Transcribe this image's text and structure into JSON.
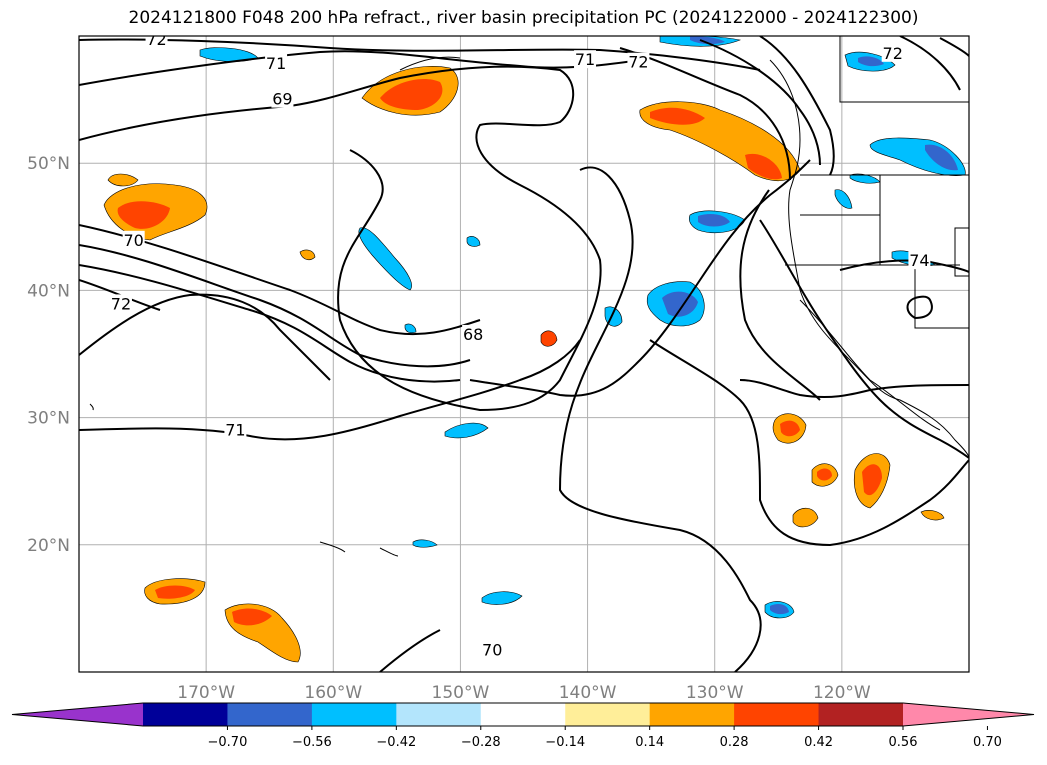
{
  "title": "2024121800 F048 200 hPa refract., river basin precipitation PC (2024122000 - 2024122300)",
  "map": {
    "lon_range": [
      -180,
      -110
    ],
    "lat_range": [
      10,
      60
    ],
    "lon_ticks": [
      {
        "value": -170,
        "label": "170°W"
      },
      {
        "value": -160,
        "label": "160°W"
      },
      {
        "value": -150,
        "label": "150°W"
      },
      {
        "value": -140,
        "label": "140°W"
      },
      {
        "value": -130,
        "label": "130°W"
      },
      {
        "value": -120,
        "label": "120°W"
      }
    ],
    "lat_ticks": [
      {
        "value": 50,
        "label": "50°N"
      },
      {
        "value": 40,
        "label": "40°N"
      },
      {
        "value": 30,
        "label": "30°N"
      },
      {
        "value": 20,
        "label": "20°N"
      }
    ],
    "grid": true,
    "contour_labels": [
      {
        "text": "72",
        "lon": -173.9,
        "lat": 59.7
      },
      {
        "text": "71",
        "lon": -164.5,
        "lat": 57.8
      },
      {
        "text": "69",
        "lon": -164.0,
        "lat": 55.0
      },
      {
        "text": "71",
        "lon": -140.2,
        "lat": 58.1
      },
      {
        "text": "72",
        "lon": -136.0,
        "lat": 57.9
      },
      {
        "text": "72",
        "lon": -116.0,
        "lat": 58.6
      },
      {
        "text": "70",
        "lon": -175.7,
        "lat": 43.9
      },
      {
        "text": "72",
        "lon": -176.7,
        "lat": 38.9
      },
      {
        "text": "68",
        "lon": -149.0,
        "lat": 36.5
      },
      {
        "text": "71",
        "lon": -167.7,
        "lat": 29.0
      },
      {
        "text": "70",
        "lon": -147.5,
        "lat": 11.7
      },
      {
        "text": "74",
        "lon": -113.9,
        "lat": 42.3
      }
    ]
  },
  "colorbar": {
    "colors": [
      "#9933cc",
      "#000099",
      "#3366cc",
      "#00bfff",
      "#b3e5fc",
      "#ffffff",
      "#ffee99",
      "#ffa500",
      "#ff4400",
      "#b22222",
      "#ff88aa"
    ],
    "tick_labels": [
      "−0.70",
      "−0.56",
      "−0.42",
      "−0.28",
      "−0.14",
      "0.14",
      "0.28",
      "0.42",
      "0.56",
      "0.70"
    ]
  }
}
